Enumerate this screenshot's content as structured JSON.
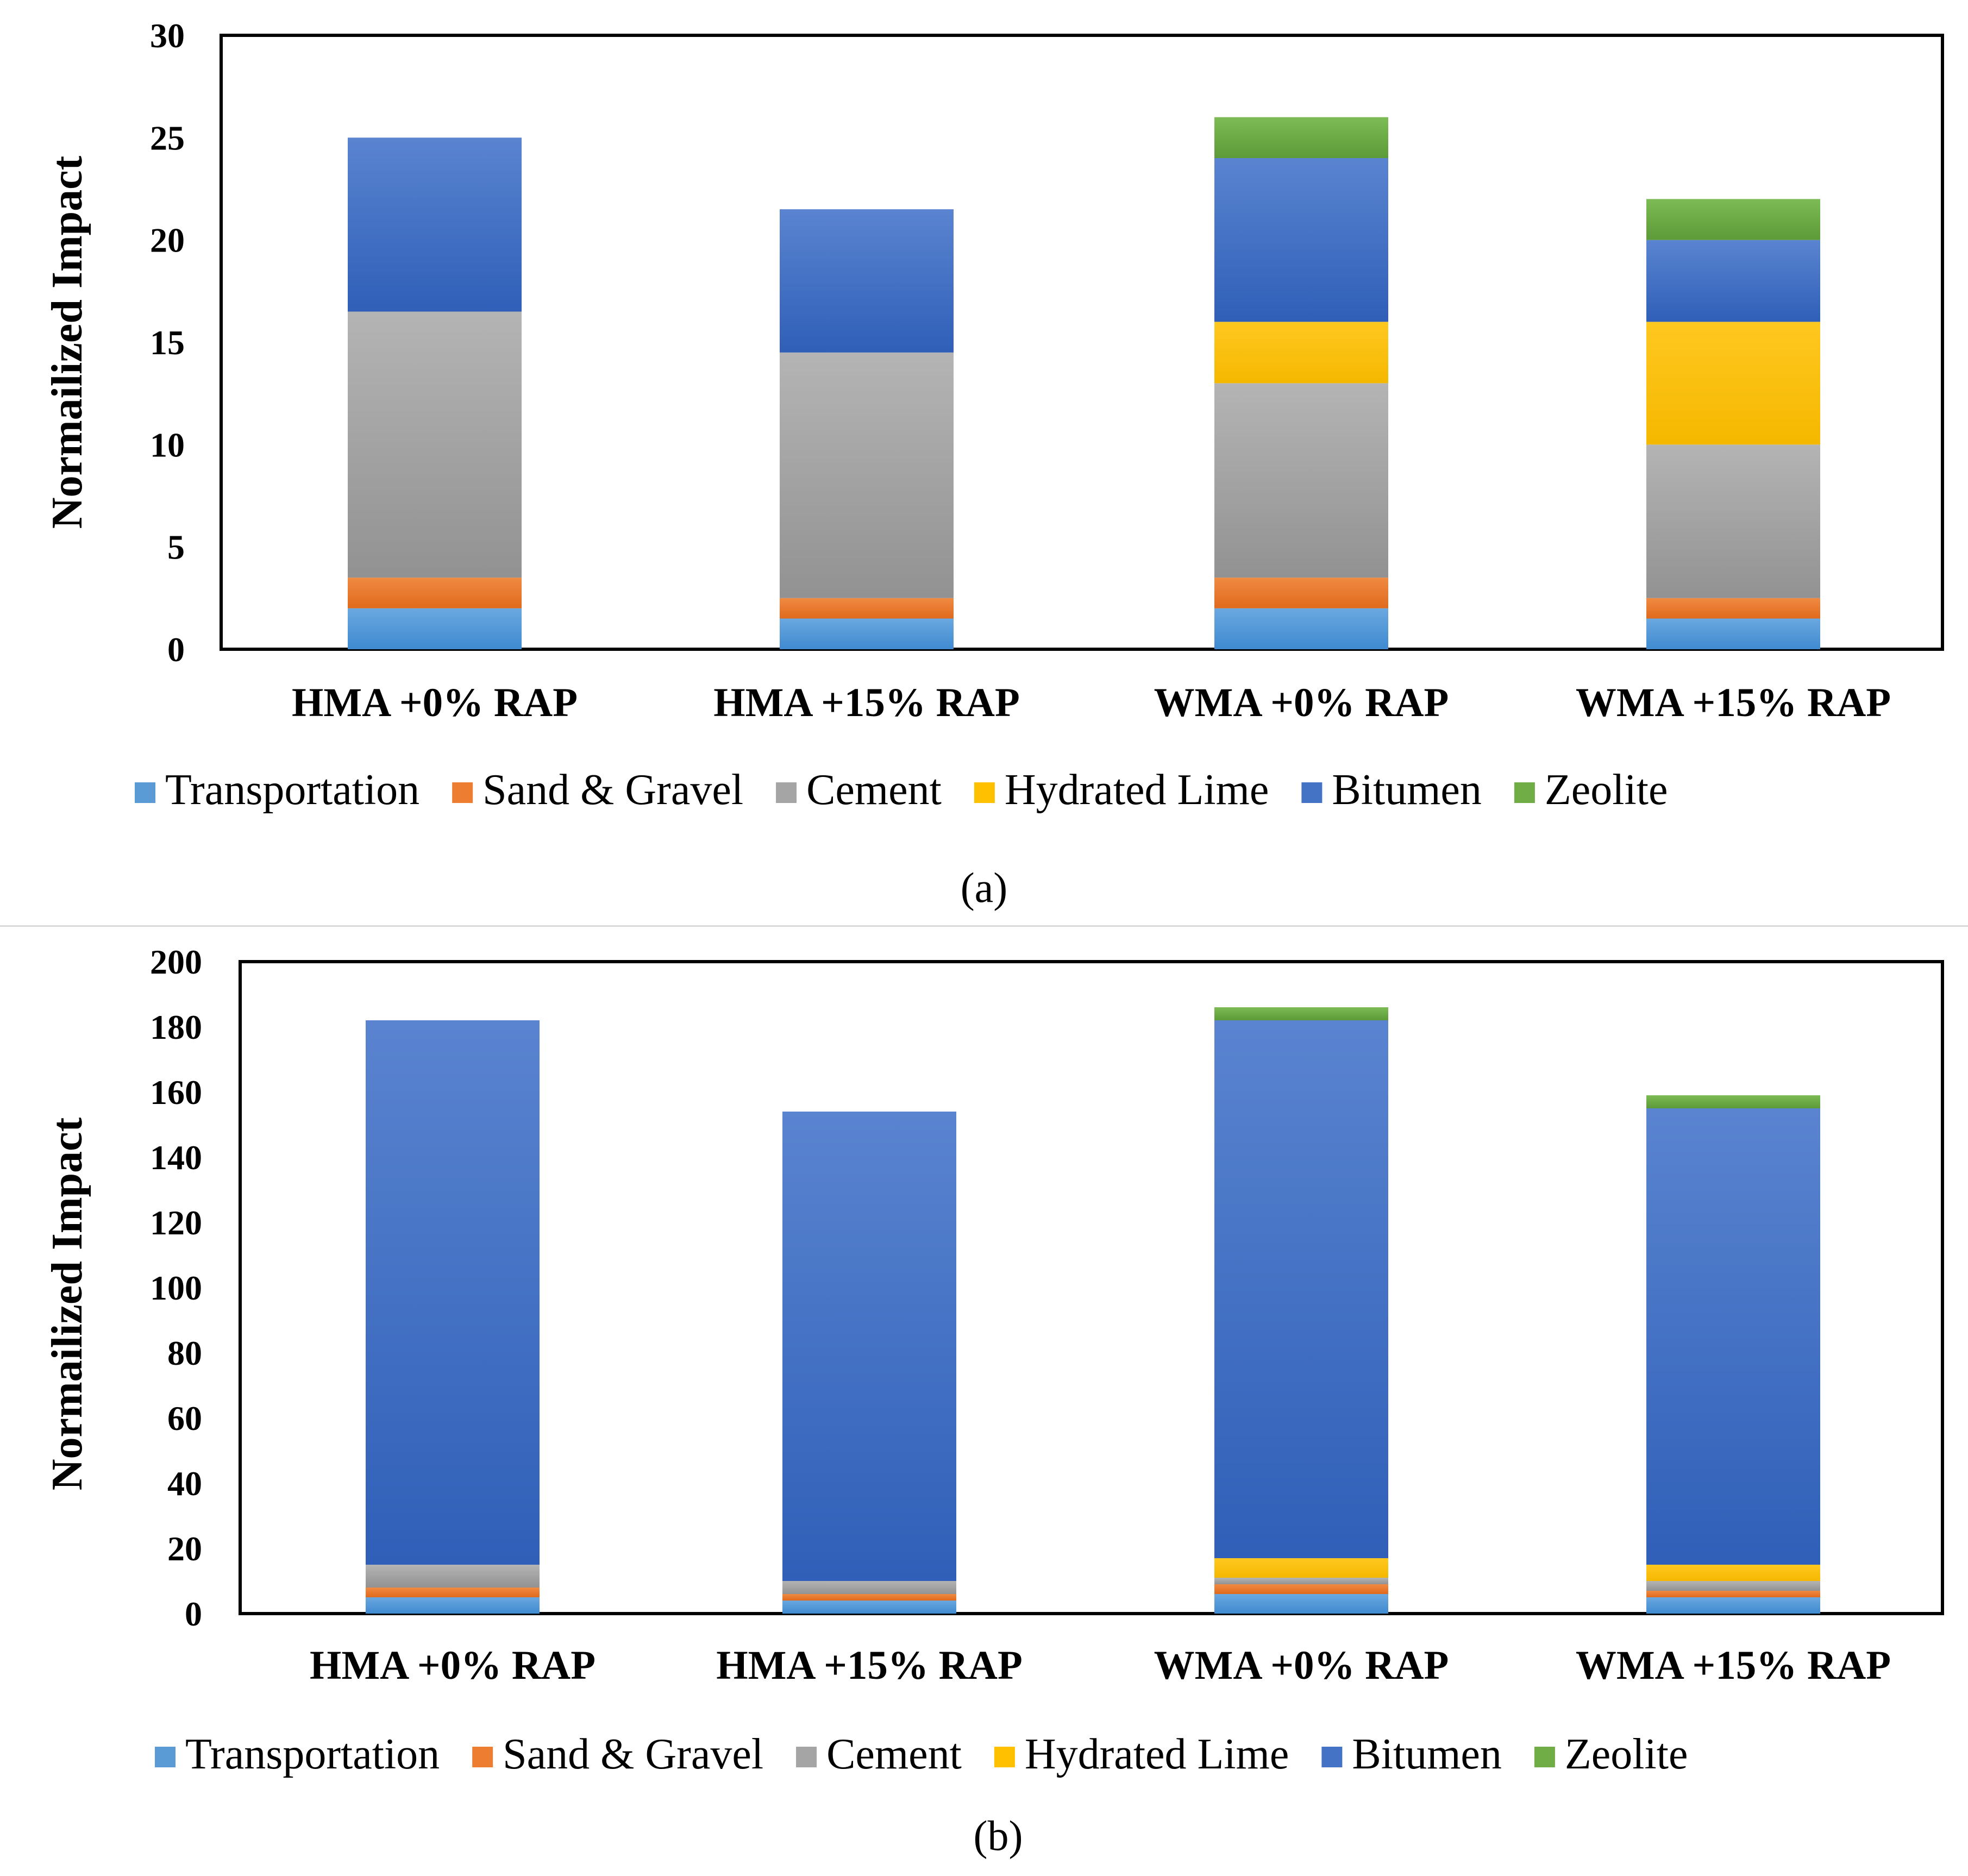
{
  "series_meta": [
    {
      "name": "Transportation",
      "color": "#5b9bd5"
    },
    {
      "name": "Sand & Gravel",
      "color": "#ed7d31"
    },
    {
      "name": "Cement",
      "color": "#a5a5a5"
    },
    {
      "name": "Hydrated Lime",
      "color": "#ffc000"
    },
    {
      "name": "Bitumen",
      "color": "#4472c4"
    },
    {
      "name": "Zeolite",
      "color": "#70ad47"
    }
  ],
  "chart_data": [
    {
      "type": "bar",
      "stacked": true,
      "caption": "(a)",
      "title": "",
      "xlabel": "",
      "ylabel": "Normailized Impact",
      "ylim": [
        0,
        30
      ],
      "yticks": [
        0,
        5,
        10,
        15,
        20,
        25,
        30
      ],
      "grid": false,
      "legend_position": "bottom",
      "categories": [
        "HMA +0% RAP",
        "HMA +15% RAP",
        "WMA +0% RAP",
        "WMA +15% RAP"
      ],
      "series": [
        {
          "name": "Transportation",
          "values": [
            2,
            1.5,
            2,
            1.5
          ]
        },
        {
          "name": "Sand & Gravel",
          "values": [
            1.5,
            1,
            1.5,
            1
          ]
        },
        {
          "name": "Cement",
          "values": [
            13,
            12,
            9.5,
            7.5
          ]
        },
        {
          "name": "Hydrated Lime",
          "values": [
            0,
            0,
            3,
            6
          ]
        },
        {
          "name": "Bitumen",
          "values": [
            8.5,
            7,
            8,
            4
          ]
        },
        {
          "name": "Zeolite",
          "values": [
            0,
            0,
            2,
            2
          ]
        }
      ]
    },
    {
      "type": "bar",
      "stacked": true,
      "caption": "(b)",
      "title": "",
      "xlabel": "",
      "ylabel": "Normailized Impact",
      "ylim": [
        0,
        200
      ],
      "yticks": [
        0,
        20,
        40,
        60,
        80,
        100,
        120,
        140,
        160,
        180,
        200
      ],
      "grid": false,
      "legend_position": "bottom",
      "categories": [
        "HMA +0% RAP",
        "HMA +15% RAP",
        "WMA +0% RAP",
        "WMA +15% RAP"
      ],
      "series": [
        {
          "name": "Transportation",
          "values": [
            5,
            4,
            6,
            5
          ]
        },
        {
          "name": "Sand & Gravel",
          "values": [
            3,
            2,
            3,
            2
          ]
        },
        {
          "name": "Cement",
          "values": [
            7,
            4,
            2,
            3
          ]
        },
        {
          "name": "Hydrated Lime",
          "values": [
            0,
            0,
            6,
            5
          ]
        },
        {
          "name": "Bitumen",
          "values": [
            167,
            144,
            165,
            140
          ]
        },
        {
          "name": "Zeolite",
          "values": [
            0,
            0,
            4,
            4
          ]
        }
      ]
    }
  ]
}
